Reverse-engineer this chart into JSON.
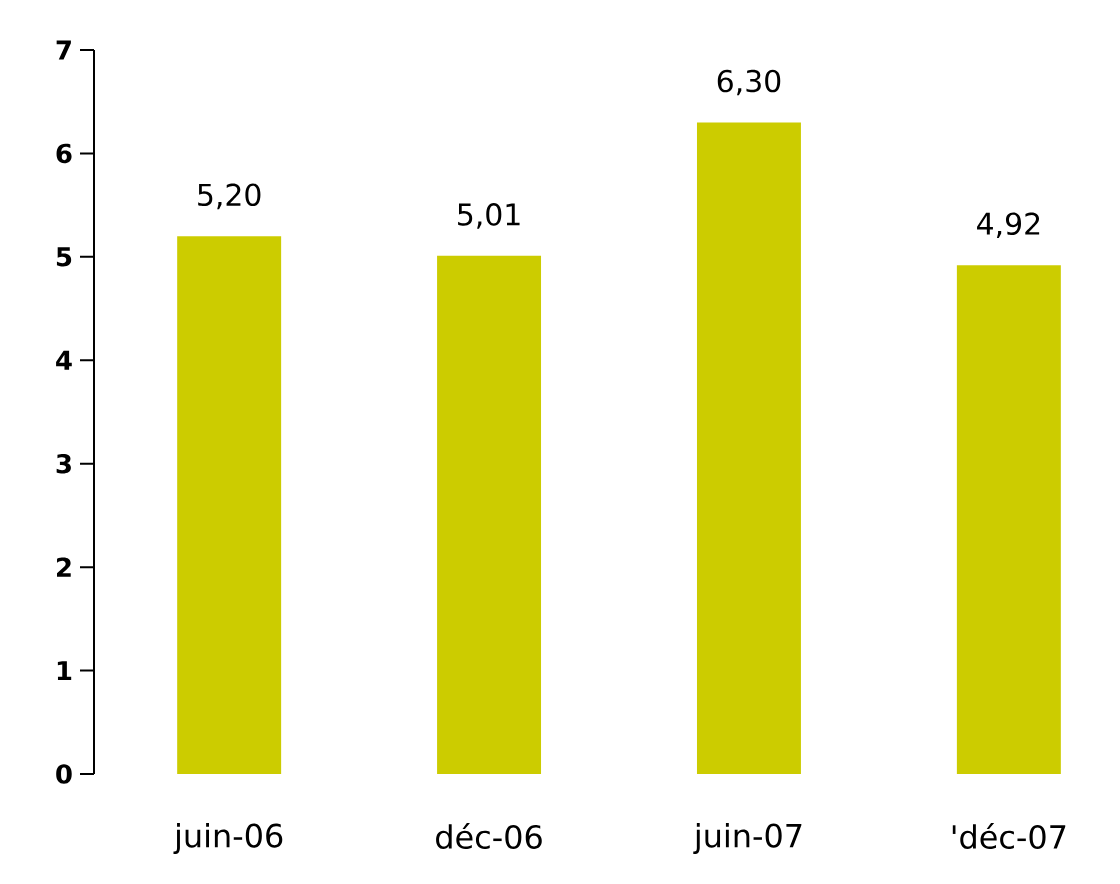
{
  "chart_data": {
    "type": "bar",
    "categories": [
      "juin-06",
      "déc-06",
      "juin-07",
      "'déc-07"
    ],
    "values": [
      5.2,
      5.01,
      6.3,
      4.92
    ],
    "value_labels": [
      "5,20",
      "5,01",
      "6,30",
      "4,92"
    ],
    "color": "#cccc00",
    "ylim": [
      0,
      7
    ],
    "yticks": [
      0,
      1,
      2,
      3,
      4,
      5,
      6,
      7
    ],
    "grid": false
  }
}
